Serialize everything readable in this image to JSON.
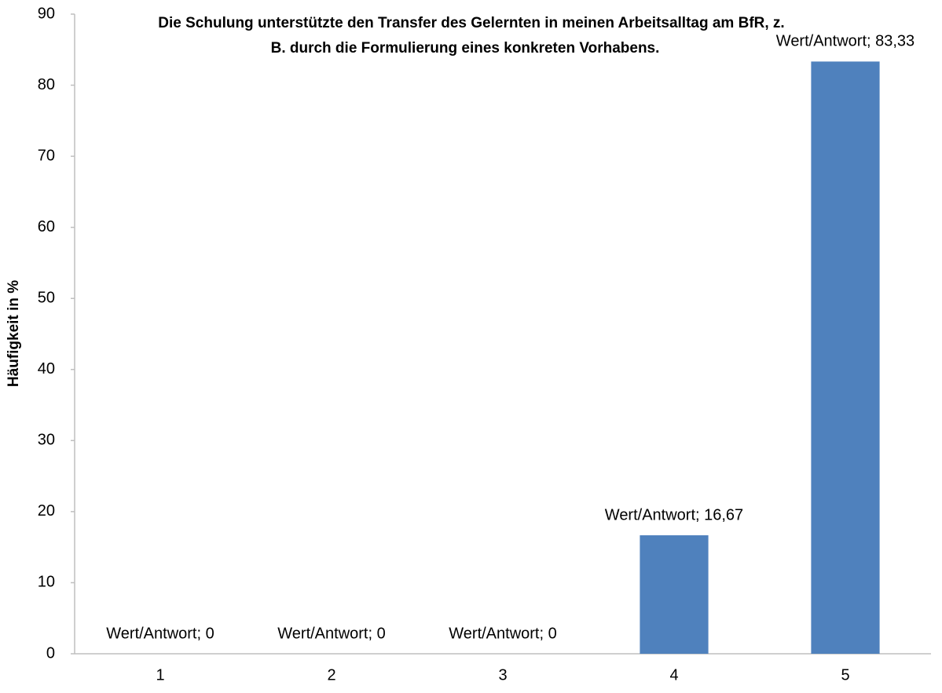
{
  "chart_data": {
    "type": "bar",
    "title": [
      "Die Schulung unterstützte den Transfer des Gelernten in meinen Arbeitsalltag am BfR, z.",
      "B. durch die Formulierung eines konkreten Vorhabens."
    ],
    "ylabel": "Häufigkeit in %",
    "categories": [
      "1",
      "2",
      "3",
      "4",
      "5"
    ],
    "values": [
      0,
      0,
      0,
      16.67,
      83.33
    ],
    "value_labels": [
      "Wert/Antwort; 0",
      "Wert/Antwort; 0",
      "Wert/Antwort; 0",
      "Wert/Antwort; 16,67",
      "Wert/Antwort; 83,33"
    ],
    "color": "#4f81bd",
    "ylim": [
      0,
      90
    ],
    "yticks": [
      0,
      10,
      20,
      30,
      40,
      50,
      60,
      70,
      80,
      90
    ],
    "grid": false
  }
}
